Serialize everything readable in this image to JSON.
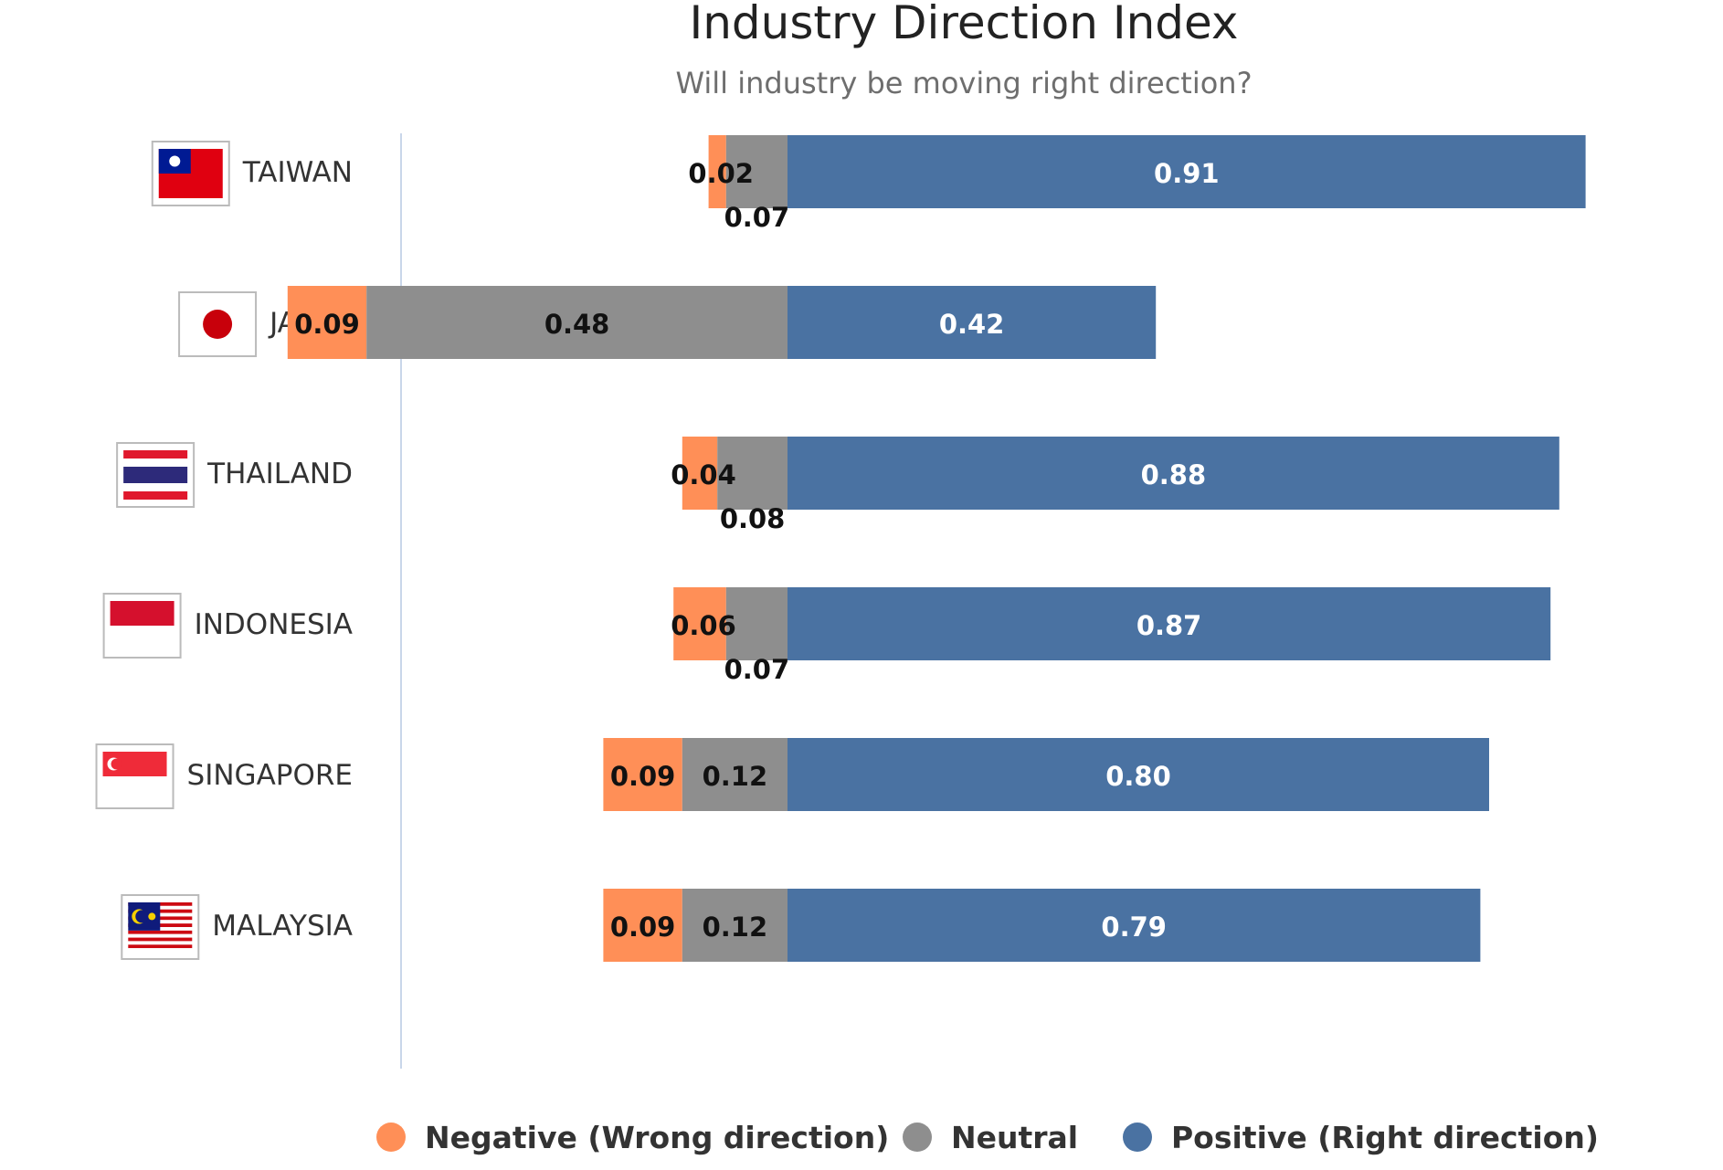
{
  "chart_data": {
    "type": "bar",
    "orientation": "horizontal",
    "stacked": true,
    "title": "Industry Direction Index",
    "subtitle": "Will industry be moving right direction?",
    "categories": [
      "TAIWAN",
      "JAPAN",
      "THAILAND",
      "INDONESIA",
      "SINGAPORE",
      "MALAYSIA"
    ],
    "series": [
      {
        "name": "Negative (Wrong direction)",
        "color": "#ff8f57",
        "values": [
          0.02,
          0.09,
          0.04,
          0.06,
          0.09,
          0.09
        ],
        "labels": [
          "0.02",
          "0.09",
          "0.04",
          "0.06",
          "0.09",
          "0.09"
        ]
      },
      {
        "name": "Neutral",
        "color": "#8e8e8e",
        "values": [
          0.07,
          0.48,
          0.08,
          0.07,
          0.12,
          0.12
        ],
        "labels": [
          "0.07",
          "0.48",
          "0.08",
          "0.07",
          "0.12",
          "0.12"
        ]
      },
      {
        "name": "Positive (Right direction)",
        "color": "#4a72a2",
        "values": [
          0.91,
          0.42,
          0.88,
          0.87,
          0.8,
          0.79
        ],
        "labels": [
          "0.91",
          "0.42",
          "0.88",
          "0.87",
          "0.80",
          "0.79"
        ]
      }
    ],
    "zero_line": "between Neutral and Positive",
    "grid": false,
    "legend_position": "bottom",
    "category_icons": [
      "taiwan-flag-icon",
      "japan-flag-icon",
      "thailand-flag-icon",
      "indonesia-flag-icon",
      "singapore-flag-icon",
      "malaysia-flag-icon"
    ]
  }
}
